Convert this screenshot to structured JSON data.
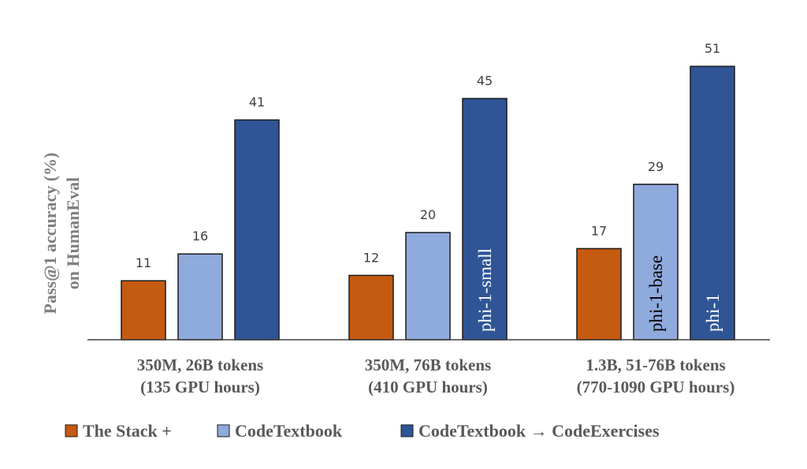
{
  "chart_data": {
    "type": "bar",
    "title": "",
    "xlabel": "",
    "ylabel": "Pass@1 accuracy (%)",
    "ylabel_line2": "on HumanEval",
    "ylim": [
      0,
      55
    ],
    "grid": false,
    "legend_position": "bottom",
    "categories": [
      [
        "350M, 26B tokens",
        "(135 GPU hours)"
      ],
      [
        "350M, 76B tokens",
        "(410 GPU hours)"
      ],
      [
        "1.3B, 51-76B tokens",
        "(770-1090 GPU hours)"
      ]
    ],
    "series": [
      {
        "name": "The Stack +",
        "color": "#c55a11",
        "values": [
          11,
          12,
          17
        ],
        "bar_labels": [
          "",
          "",
          ""
        ]
      },
      {
        "name": "CodeTextbook",
        "color": "#8faadc",
        "values": [
          16,
          20,
          29
        ],
        "bar_labels": [
          "",
          "",
          "phi-1-base"
        ]
      },
      {
        "name": "CodeTextbook → CodeExercises",
        "color": "#2f5597",
        "values": [
          41,
          45,
          51
        ],
        "bar_labels": [
          "",
          "phi-1-small",
          "phi-1"
        ]
      }
    ]
  }
}
